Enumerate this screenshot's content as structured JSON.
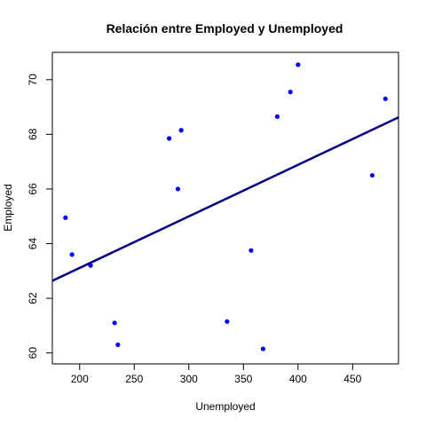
{
  "chart_data": {
    "type": "scatter",
    "title": "Relación entre Employed y Unemployed",
    "xlabel": "Unemployed",
    "ylabel": "Employed",
    "xlim": [
      175,
      492
    ],
    "ylim": [
      59.6,
      71
    ],
    "xticks": [
      200,
      250,
      300,
      350,
      400,
      450
    ],
    "yticks": [
      60,
      62,
      64,
      66,
      68,
      70
    ],
    "point_color": "#0000ff",
    "line_color": "#000080",
    "points": [
      {
        "x": 187.0,
        "y": 64.95
      },
      {
        "x": 193.0,
        "y": 63.6
      },
      {
        "x": 210.0,
        "y": 63.2
      },
      {
        "x": 232.0,
        "y": 61.1
      },
      {
        "x": 235.0,
        "y": 60.3
      },
      {
        "x": 282.0,
        "y": 67.85
      },
      {
        "x": 290.0,
        "y": 66.0
      },
      {
        "x": 293.0,
        "y": 68.15
      },
      {
        "x": 335.0,
        "y": 61.15
      },
      {
        "x": 357.0,
        "y": 63.75
      },
      {
        "x": 368.0,
        "y": 60.15
      },
      {
        "x": 381.0,
        "y": 68.65
      },
      {
        "x": 393.0,
        "y": 69.55
      },
      {
        "x": 400.0,
        "y": 70.55
      },
      {
        "x": 468.0,
        "y": 66.5
      },
      {
        "x": 480.0,
        "y": 69.3
      }
    ],
    "regression": {
      "intercept": 59.34,
      "slope": 0.01886
    },
    "grid": false,
    "legend": "none"
  }
}
